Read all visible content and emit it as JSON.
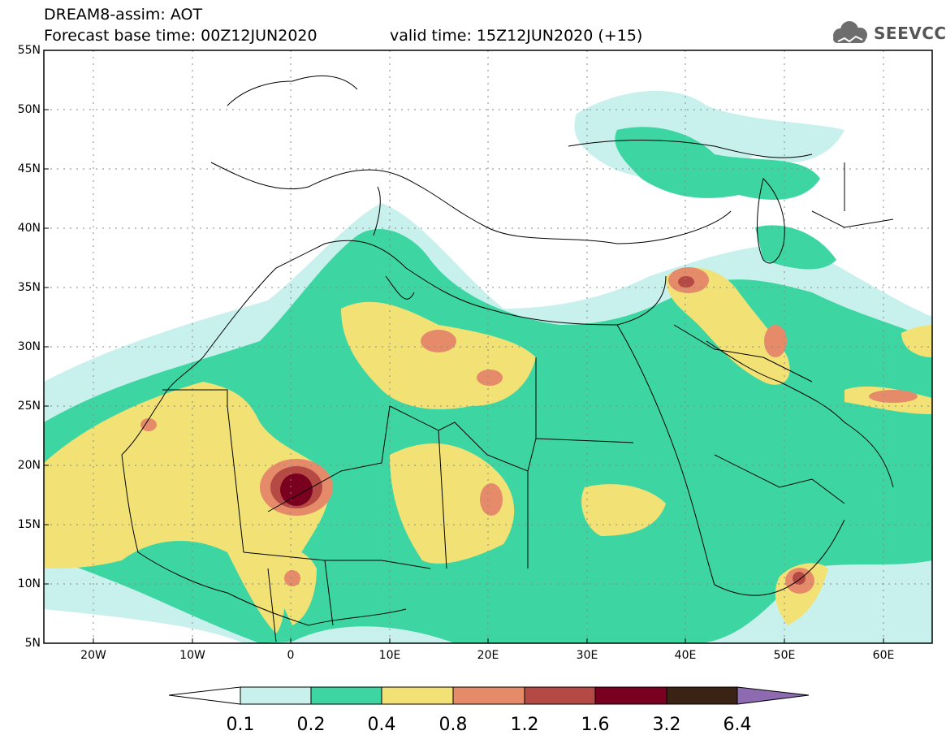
{
  "header": {
    "title_line1": "DREAM8-assim: AOT",
    "title_line2": "Forecast base time: 00Z12JUN2020",
    "valid_time": "valid time: 15Z12JUN2020 (+15)",
    "logo_text": "SEEVCCC",
    "logo_icon": "cloud-icon"
  },
  "map": {
    "lat_labels": [
      "55N",
      "50N",
      "45N",
      "40N",
      "35N",
      "30N",
      "25N",
      "20N",
      "15N",
      "10N",
      "5N"
    ],
    "lon_labels": [
      "20W",
      "10W",
      "0",
      "10E",
      "20E",
      "30E",
      "40E",
      "50E",
      "60E"
    ],
    "lon_range": [
      -25,
      65
    ],
    "lat_range": [
      5,
      55
    ]
  },
  "colorbar": {
    "labels": [
      "0.1",
      "0.2",
      "0.4",
      "0.8",
      "1.2",
      "1.6",
      "3.2",
      "6.4"
    ],
    "colors": [
      "#ffffff",
      "#c8f0ec",
      "#3dd6a3",
      "#f2e276",
      "#e58b6a",
      "#b54a45",
      "#7a0020",
      "#3a2214",
      "#8e6bb0"
    ]
  }
}
